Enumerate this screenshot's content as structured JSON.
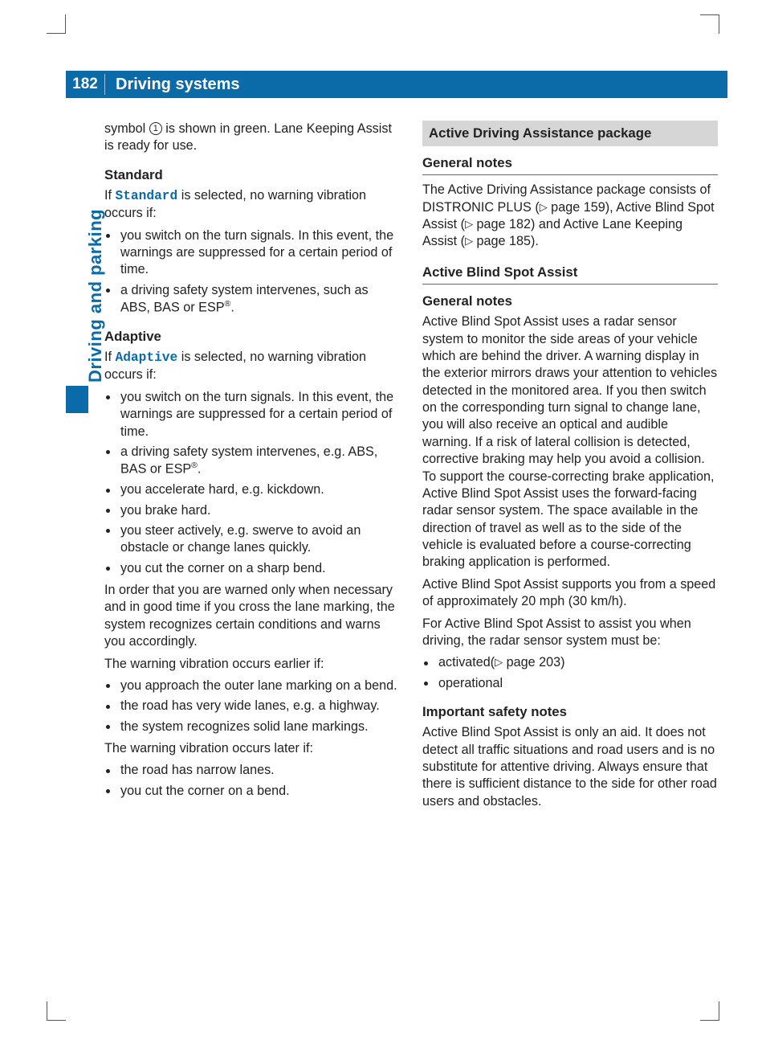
{
  "page_number": "182",
  "header_title": "Driving systems",
  "side_tab": "Driving and parking",
  "colors": {
    "brand": "#0b6aa8",
    "band": "#d6d6d6",
    "text": "#222222",
    "bg": "#ffffff"
  },
  "left": {
    "intro": "symbol ① is shown in green. Lane Keeping Assist is ready for use.",
    "intro_symbol": "1",
    "standard": {
      "heading": "Standard",
      "lead_a": "If ",
      "lead_term": "Standard",
      "lead_b": " is selected, no warning vibration occurs if:",
      "items": [
        "you switch on the turn signals. In this event, the warnings are suppressed for a certain period of time.",
        "a driving safety system intervenes, such as ABS, BAS or ESP®."
      ]
    },
    "adaptive": {
      "heading": "Adaptive",
      "lead_a": "If ",
      "lead_term": "Adaptive",
      "lead_b": " is selected, no warning vibration occurs if:",
      "items": [
        "you switch on the turn signals. In this event, the warnings are suppressed for a certain period of time.",
        "a driving safety system intervenes, e.g. ABS, BAS or ESP®.",
        "you accelerate hard, e.g. kickdown.",
        "you brake hard.",
        "you steer actively, e.g. swerve to avoid an obstacle or change lanes quickly.",
        "you cut the corner on a sharp bend."
      ],
      "para1": "In order that you are warned only when necessary and in good time if you cross the lane marking, the system recognizes certain conditions and warns you accordingly.",
      "para2": "The warning vibration occurs earlier if:",
      "earlier": [
        "you approach the outer lane marking on a bend.",
        "the road has very wide lanes, e.g. a highway.",
        "the system recognizes solid lane markings."
      ],
      "para3": "The warning vibration occurs later if:",
      "later": [
        "the road has narrow lanes.",
        "you cut the corner on a bend."
      ]
    }
  },
  "right": {
    "band": "Active Driving Assistance package",
    "gen1_head": "General notes",
    "gen1_body": "The Active Driving Assistance package consists of DISTRONIC PLUS (▷ page 159), Active Blind Spot Assist (▷ page 182) and Active Lane Keeping Assist (▷ page 185).",
    "abs_head": "Active Blind Spot Assist",
    "gen2_head": "General notes",
    "gen2_p1": "Active Blind Spot Assist uses a radar sensor system to monitor the side areas of your vehicle which are behind the driver. A warning display in the exterior mirrors draws your attention to vehicles detected in the monitored area. If you then switch on the corresponding turn signal to change lane, you will also receive an optical and audible warning. If a risk of lateral collision is detected, corrective braking may help you avoid a collision. To support the course-correcting brake application, Active Blind Spot Assist uses the forward-facing radar sensor system. The space available in the direction of travel as well as to the side of the vehicle is evaluated before a course-correcting braking application is performed.",
    "gen2_p2": "Active Blind Spot Assist supports you from a speed of approximately 20 mph (30 km/h).",
    "gen2_p3": "For Active Blind Spot Assist to assist you when driving, the radar sensor system must be:",
    "gen2_items": [
      "activated(▷ page 203)",
      "operational"
    ],
    "safety_head": "Important safety notes",
    "safety_body": "Active Blind Spot Assist is only an aid. It does not detect all traffic situations and road users and is no substitute for attentive driving. Always ensure that there is sufficient distance to the side for other road users and obstacles."
  }
}
